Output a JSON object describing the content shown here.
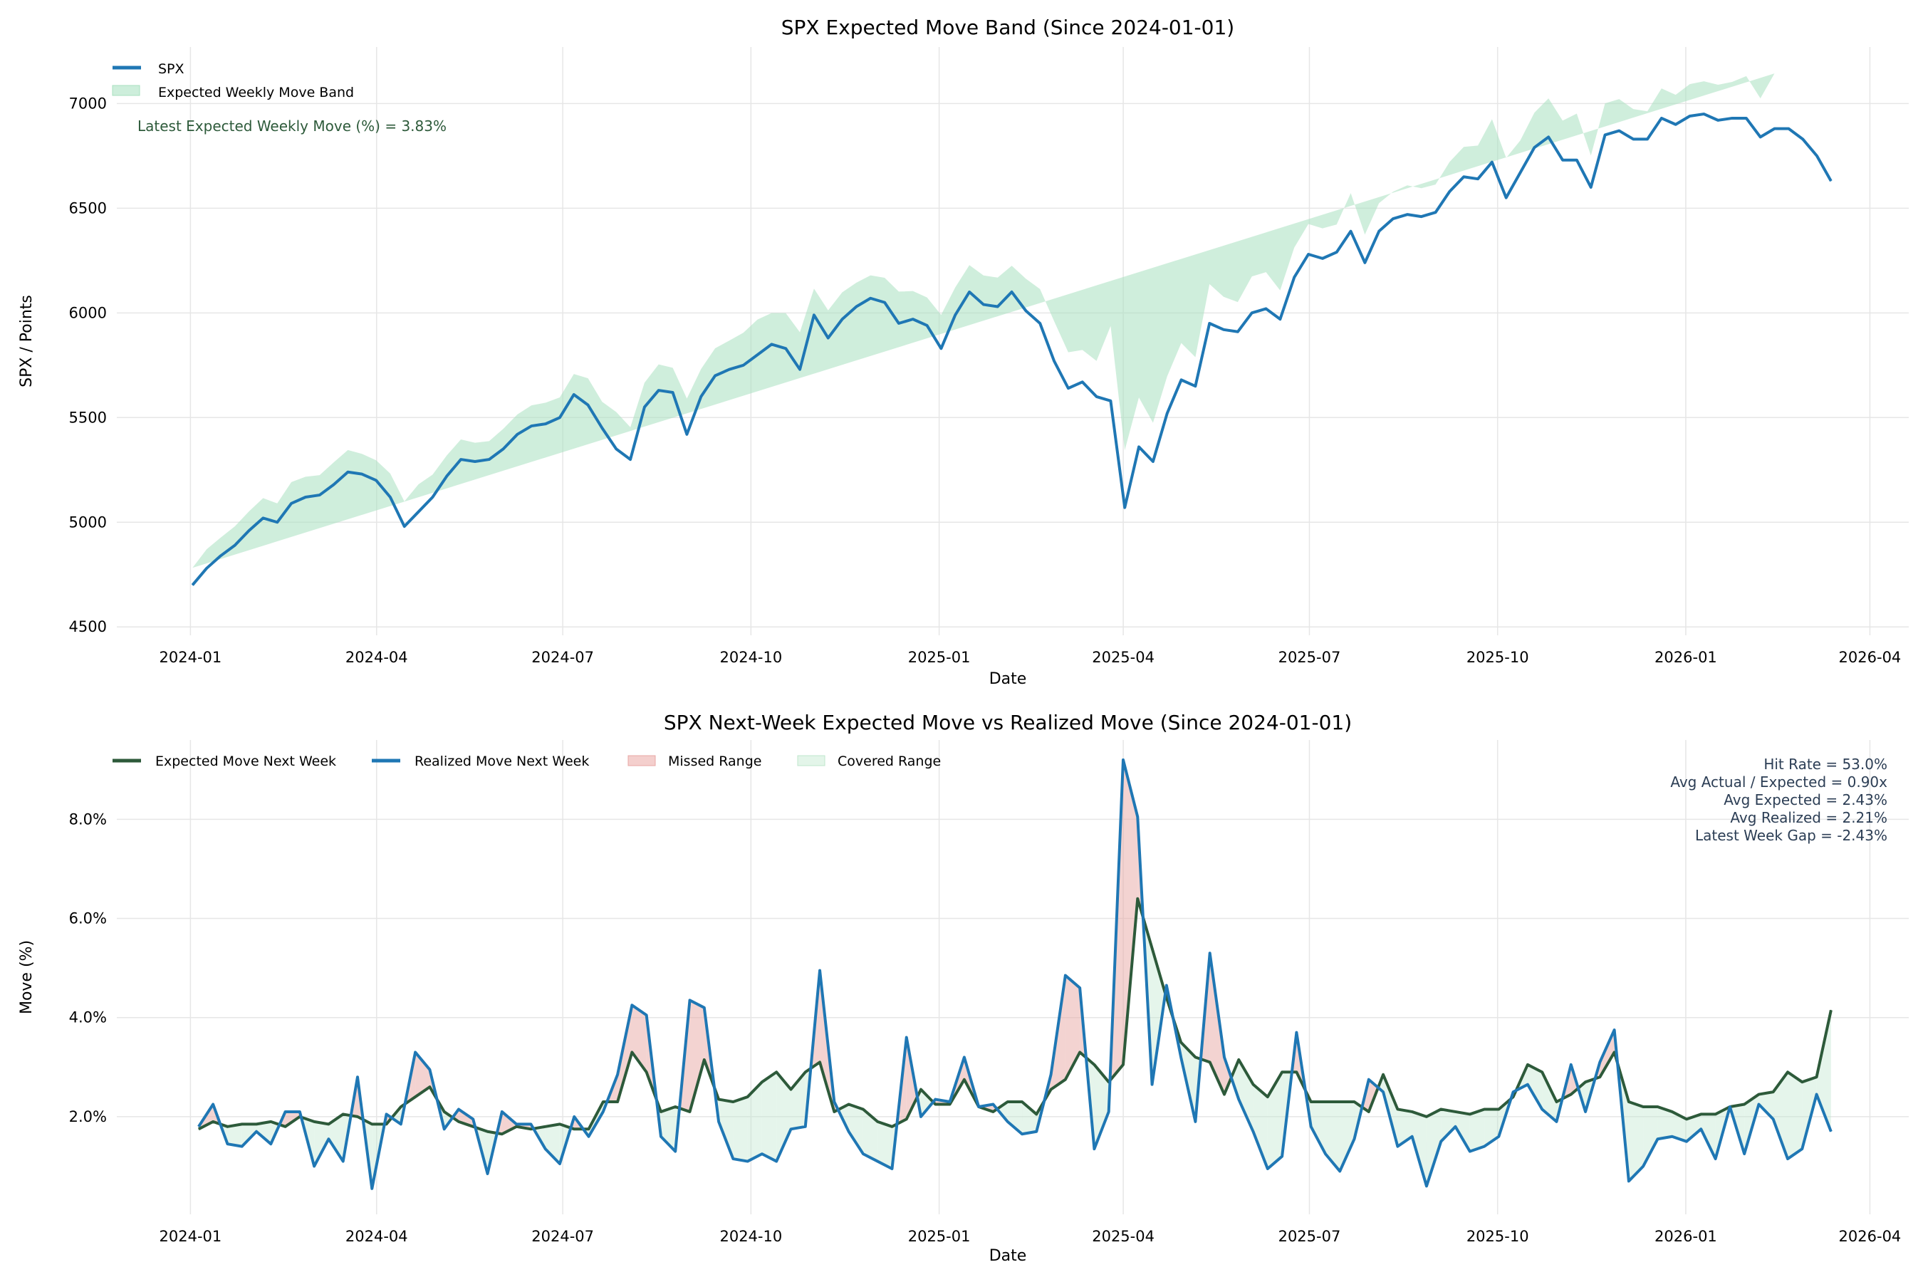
{
  "chart_data": [
    {
      "type": "line",
      "title": "SPX Expected Move Band (Since 2024-01-01)",
      "xlabel": "Date",
      "ylabel": "SPX / Points",
      "ylim": [
        4460,
        7270
      ],
      "xlim": [
        "2023-11-26",
        "2026-04-20"
      ],
      "x_ticks": [
        "2024-01",
        "2024-04",
        "2024-07",
        "2024-10",
        "2025-01",
        "2025-04",
        "2025-07",
        "2025-10",
        "2026-01",
        "2026-04"
      ],
      "y_ticks": [
        4500,
        5000,
        5500,
        6000,
        6500,
        7000
      ],
      "grid": true,
      "legend": {
        "placement": "top-left",
        "entries": [
          "SPX",
          "Expected Weekly Move Band"
        ]
      },
      "annotation": "Latest Expected Weekly Move (%) = 3.83%",
      "start_date": "2024-01-02",
      "end_date": "2026-03-13",
      "spx": [
        4700,
        4780,
        4840,
        4890,
        4960,
        5020,
        5000,
        5090,
        5120,
        5130,
        5180,
        5240,
        5230,
        5200,
        5120,
        4980,
        5050,
        5120,
        5220,
        5300,
        5290,
        5300,
        5350,
        5420,
        5460,
        5470,
        5500,
        5610,
        5560,
        5450,
        5350,
        5300,
        5550,
        5630,
        5620,
        5420,
        5600,
        5700,
        5730,
        5750,
        5800,
        5850,
        5830,
        5730,
        5990,
        5880,
        5970,
        6030,
        6070,
        6050,
        5950,
        5970,
        5940,
        5830,
        5990,
        6100,
        6040,
        6030,
        6100,
        6010,
        5950,
        5770,
        5640,
        5670,
        5600,
        5580,
        5070,
        5360,
        5290,
        5520,
        5680,
        5650,
        5950,
        5920,
        5910,
        6000,
        6020,
        5970,
        6170,
        6280,
        6260,
        6290,
        6390,
        6240,
        6390,
        6450,
        6470,
        6460,
        6480,
        6580,
        6650,
        6640,
        6720,
        6550,
        6670,
        6790,
        6840,
        6730,
        6730,
        6600,
        6850,
        6870,
        6830,
        6830,
        6930,
        6900,
        6940,
        6950,
        6920,
        6930,
        6930,
        6840,
        6880,
        6880,
        6830,
        6750,
        6630
      ],
      "expected_move_pct": [
        1.75,
        1.9,
        1.8,
        1.85,
        1.85,
        1.9,
        1.8,
        2.0,
        1.9,
        1.85,
        2.05,
        2.0,
        1.85,
        1.85,
        2.2,
        2.4,
        2.6,
        2.1,
        1.9,
        1.8,
        1.7,
        1.65,
        1.8,
        1.75,
        1.8,
        1.85,
        1.75,
        1.75,
        2.3,
        2.3,
        3.3,
        2.9,
        2.1,
        2.2,
        2.1,
        3.15,
        2.35,
        2.3,
        2.4,
        2.7,
        2.9,
        2.55,
        2.9,
        3.1,
        2.1,
        2.25,
        2.15,
        1.9,
        1.8,
        1.95,
        2.55,
        2.25,
        2.25,
        2.75,
        2.2,
        2.1,
        2.3,
        2.3,
        2.05,
        2.55,
        2.75,
        3.3,
        3.05,
        2.7,
        3.05,
        6.4,
        5.4,
        4.4,
        3.5,
        3.2,
        3.1,
        2.45,
        3.15,
        2.65,
        2.4,
        2.9,
        2.9,
        2.3,
        2.3,
        2.3,
        2.3,
        2.1,
        2.85,
        2.15,
        2.1,
        2.0,
        2.15,
        2.1,
        2.05,
        2.15,
        2.15,
        2.4,
        3.05,
        2.9,
        2.3,
        2.45,
        2.7,
        2.8,
        3.3,
        2.3,
        2.2,
        2.2,
        2.1,
        1.95,
        2.05,
        2.05,
        2.2,
        2.25,
        2.45,
        2.5,
        2.9,
        2.7,
        3.83
      ]
    },
    {
      "type": "line",
      "title": "SPX Next-Week Expected Move vs Realized Move (Since 2024-01-01)",
      "xlabel": "Date",
      "ylabel": "Move (%)",
      "ylim": [
        0.03,
        9.6
      ],
      "xlim": [
        "2023-11-26",
        "2026-04-20"
      ],
      "x_ticks": [
        "2024-01",
        "2024-04",
        "2024-07",
        "2024-10",
        "2025-01",
        "2025-04",
        "2025-07",
        "2025-10",
        "2026-01",
        "2026-04"
      ],
      "y_ticks": [
        "2.0%",
        "4.0%",
        "6.0%",
        "8.0%"
      ],
      "y_tick_values": [
        2,
        4,
        6,
        8
      ],
      "grid": true,
      "legend": {
        "placement": "top-left",
        "entries": [
          "Expected Move Next Week",
          "Realized Move Next Week",
          "Missed Range",
          "Covered Range"
        ]
      },
      "stats": [
        "Hit Rate = 53.0%",
        "Avg Actual / Expected = 0.90x",
        "Avg Expected = 2.43%",
        "Avg Realized = 2.21%",
        "Latest Week Gap = -2.43%"
      ],
      "start_date": "2024-01-05",
      "end_date": "2026-03-13",
      "series": [
        {
          "name": "Expected Move Next Week",
          "color": "#2d5a3a",
          "values": [
            1.75,
            1.9,
            1.8,
            1.85,
            1.85,
            1.9,
            1.8,
            2.0,
            1.9,
            1.85,
            2.05,
            2.0,
            1.85,
            1.85,
            2.2,
            2.4,
            2.6,
            2.1,
            1.9,
            1.8,
            1.7,
            1.65,
            1.8,
            1.75,
            1.8,
            1.85,
            1.75,
            1.75,
            2.3,
            2.3,
            3.3,
            2.9,
            2.1,
            2.2,
            2.1,
            3.15,
            2.35,
            2.3,
            2.4,
            2.7,
            2.9,
            2.55,
            2.9,
            3.1,
            2.1,
            2.25,
            2.15,
            1.9,
            1.8,
            1.95,
            2.55,
            2.25,
            2.25,
            2.75,
            2.2,
            2.1,
            2.3,
            2.3,
            2.05,
            2.55,
            2.75,
            3.3,
            3.05,
            2.7,
            3.05,
            6.4,
            5.4,
            4.4,
            3.5,
            3.2,
            3.1,
            2.45,
            3.15,
            2.65,
            2.4,
            2.9,
            2.9,
            2.3,
            2.3,
            2.3,
            2.3,
            2.1,
            2.85,
            2.15,
            2.1,
            2.0,
            2.15,
            2.1,
            2.05,
            2.15,
            2.15,
            2.4,
            3.05,
            2.9,
            2.3,
            2.45,
            2.7,
            2.8,
            3.3,
            2.3,
            2.2,
            2.2,
            2.1,
            1.95,
            2.05,
            2.05,
            2.2,
            2.25,
            2.45,
            2.5,
            2.9,
            2.7,
            2.8,
            4.15
          ]
        },
        {
          "name": "Realized Move Next Week",
          "color": "#1f77b4",
          "values": [
            1.8,
            2.25,
            1.45,
            1.4,
            1.7,
            1.45,
            2.1,
            2.1,
            1.0,
            1.55,
            1.1,
            2.8,
            0.55,
            2.05,
            1.85,
            3.3,
            2.95,
            1.75,
            2.15,
            1.95,
            0.85,
            2.1,
            1.85,
            1.85,
            1.35,
            1.05,
            2.0,
            1.6,
            2.1,
            2.85,
            4.25,
            4.05,
            1.6,
            1.3,
            4.35,
            4.2,
            1.9,
            1.15,
            1.1,
            1.25,
            1.1,
            1.75,
            1.8,
            4.95,
            2.3,
            1.7,
            1.25,
            1.1,
            0.95,
            3.6,
            2.0,
            2.35,
            2.3,
            3.2,
            2.2,
            2.25,
            1.9,
            1.65,
            1.7,
            2.85,
            4.85,
            4.6,
            1.35,
            2.1,
            9.2,
            8.05,
            2.65,
            4.65,
            3.2,
            1.9,
            5.3,
            3.2,
            2.35,
            1.7,
            0.95,
            1.2,
            3.7,
            1.8,
            1.25,
            0.9,
            1.55,
            2.75,
            2.5,
            1.4,
            1.6,
            0.6,
            1.5,
            1.8,
            1.3,
            1.4,
            1.6,
            2.5,
            2.65,
            2.15,
            1.9,
            3.05,
            2.1,
            3.1,
            3.75,
            0.7,
            1.0,
            1.55,
            1.6,
            1.5,
            1.75,
            1.15,
            2.2,
            1.25,
            2.25,
            1.95,
            1.15,
            1.35,
            2.45,
            1.7
          ]
        }
      ],
      "fill_colors": {
        "missed": "#e8a7a4",
        "covered": "#bfe6cc"
      }
    }
  ],
  "colors": {
    "spx": "#1f77b4",
    "band": "#a8e0bf",
    "annotation": "#2d5a3a",
    "stats": "#2c3e55",
    "grid": "#e6e6e6"
  }
}
